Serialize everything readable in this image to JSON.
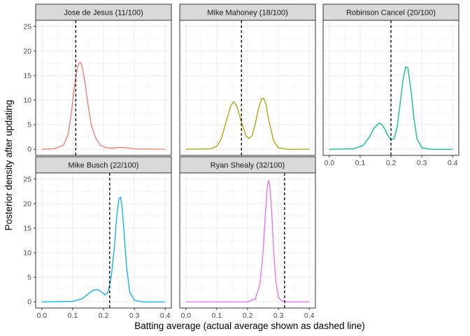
{
  "chart_data": {
    "type": "line",
    "title": "",
    "xlabel": "Batting average (actual average shown as dashed line)",
    "ylabel": "Posterior density after updating",
    "xlim": [
      0.0,
      0.4
    ],
    "ylim": [
      0,
      25
    ],
    "x_ticks": [
      0.0,
      0.1,
      0.2,
      0.3,
      0.4
    ],
    "x_tick_labels": [
      "0.0",
      "0.1",
      "0.2",
      "0.3",
      "0.4"
    ],
    "y_ticks": [
      0,
      5,
      10,
      15,
      20,
      25
    ],
    "y_tick_labels": [
      "0",
      "5",
      "10",
      "15",
      "20",
      "25"
    ],
    "grid": true,
    "legend": "none",
    "panels": [
      {
        "label": "Jose de Jesus (11/100)",
        "actual": 0.11,
        "color": "#F8766D",
        "x": [
          0.0,
          0.04,
          0.07,
          0.085,
          0.095,
          0.105,
          0.115,
          0.12,
          0.125,
          0.13,
          0.14,
          0.15,
          0.16,
          0.175,
          0.19,
          0.21,
          0.23,
          0.25,
          0.27,
          0.3,
          0.4
        ],
        "y": [
          0,
          0.1,
          0.8,
          3.0,
          7.0,
          12.5,
          16.5,
          17.5,
          17.7,
          17.0,
          13.5,
          9.0,
          5.0,
          2.2,
          0.8,
          0.3,
          0.2,
          0.4,
          0.3,
          0.1,
          0
        ]
      },
      {
        "label": "Mike Mahoney (18/100)",
        "actual": 0.18,
        "color": "#A3A500",
        "x": [
          0.0,
          0.08,
          0.1,
          0.115,
          0.13,
          0.145,
          0.155,
          0.165,
          0.18,
          0.195,
          0.205,
          0.215,
          0.225,
          0.235,
          0.245,
          0.252,
          0.26,
          0.27,
          0.285,
          0.3,
          0.33,
          0.4
        ],
        "y": [
          0,
          0.1,
          0.6,
          2.2,
          5.5,
          8.8,
          9.7,
          8.8,
          5.5,
          2.7,
          2.2,
          2.8,
          5.2,
          8.2,
          10.2,
          10.4,
          9.0,
          5.5,
          1.6,
          0.3,
          0,
          0
        ]
      },
      {
        "label": "Robinson Cancel (20/100)",
        "actual": 0.2,
        "color": "#00BF7D",
        "x": [
          0.0,
          0.08,
          0.11,
          0.13,
          0.145,
          0.16,
          0.17,
          0.18,
          0.19,
          0.2,
          0.21,
          0.22,
          0.23,
          0.24,
          0.248,
          0.255,
          0.265,
          0.275,
          0.285,
          0.3,
          0.33,
          0.4
        ],
        "y": [
          0,
          0.1,
          0.8,
          2.5,
          4.3,
          5.3,
          5.1,
          4.1,
          2.8,
          1.9,
          2.2,
          4.5,
          9.5,
          14.5,
          16.8,
          16.5,
          12.0,
          6.0,
          2.0,
          0.3,
          0,
          0
        ]
      },
      {
        "label": "Mike Busch (22/100)",
        "actual": 0.22,
        "color": "#00B0F6",
        "x": [
          0.0,
          0.1,
          0.13,
          0.15,
          0.165,
          0.175,
          0.185,
          0.195,
          0.205,
          0.215,
          0.225,
          0.235,
          0.243,
          0.25,
          0.255,
          0.26,
          0.265,
          0.275,
          0.285,
          0.3,
          0.33,
          0.4
        ],
        "y": [
          0,
          0.1,
          0.6,
          1.6,
          2.3,
          2.5,
          2.4,
          1.9,
          1.4,
          2.0,
          5.0,
          11.0,
          17.5,
          21.0,
          21.3,
          19.5,
          15.5,
          7.0,
          2.0,
          0.3,
          0,
          0
        ]
      },
      {
        "label": "Ryan Shealy (32/100)",
        "actual": 0.32,
        "color": "#E76BF3",
        "x": [
          0.0,
          0.2,
          0.225,
          0.24,
          0.25,
          0.258,
          0.264,
          0.268,
          0.272,
          0.278,
          0.285,
          0.292,
          0.3,
          0.31,
          0.33,
          0.4
        ],
        "y": [
          0,
          0,
          0.6,
          3.5,
          10.0,
          18.0,
          23.5,
          24.7,
          23.8,
          18.5,
          10.0,
          4.0,
          1.0,
          0.2,
          0,
          0
        ]
      }
    ]
  }
}
